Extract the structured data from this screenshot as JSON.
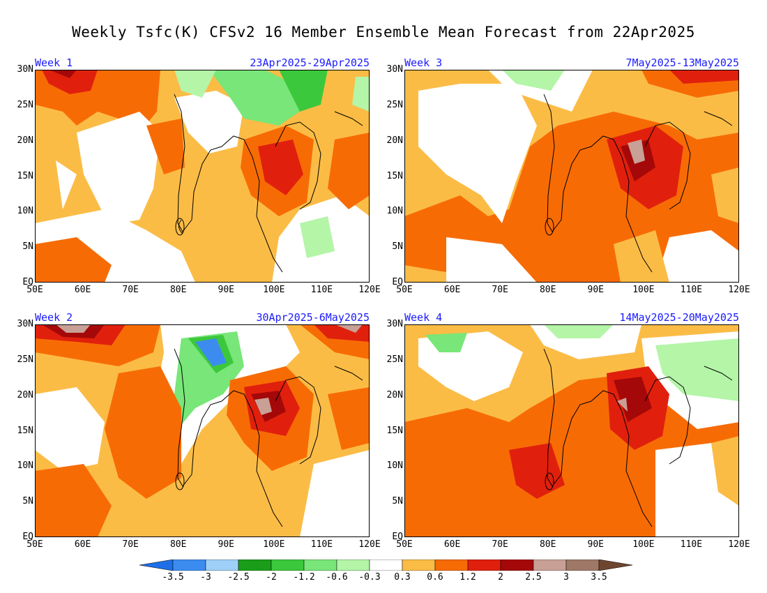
{
  "title": "Weekly Tsfc(K) CFSv2 16 Member Ensemble Mean Forecast from 22Apr2025",
  "y_ticks": [
    "30N",
    "25N",
    "20N",
    "15N",
    "10N",
    "5N",
    "EQ"
  ],
  "x_ticks": [
    "50E",
    "60E",
    "70E",
    "80E",
    "90E",
    "100E",
    "110E",
    "120E"
  ],
  "panels": [
    {
      "week": "Week 1",
      "dates": "23Apr2025-29Apr2025"
    },
    {
      "week": "Week 3",
      "dates": "7May2025-13May2025"
    },
    {
      "week": "Week 2",
      "dates": "30Apr2025-6May2025"
    },
    {
      "week": "Week 4",
      "dates": "14May2025-20May2025"
    }
  ],
  "colorbar": {
    "labels": [
      "-3.5",
      "-3",
      "-2.5",
      "-2",
      "-1.2",
      "-0.6",
      "-0.3",
      "0.3",
      "0.6",
      "1.2",
      "2",
      "2.5",
      "3",
      "3.5"
    ],
    "colors": [
      "#1e6fe6",
      "#3c8cf0",
      "#9fd0f7",
      "#1a9e1a",
      "#3cc83c",
      "#78e678",
      "#b4f5a8",
      "#ffffff",
      "#fbbc46",
      "#f76b05",
      "#e0200d",
      "#a50808",
      "#c8a096",
      "#a07868",
      "#6e4630"
    ]
  }
}
